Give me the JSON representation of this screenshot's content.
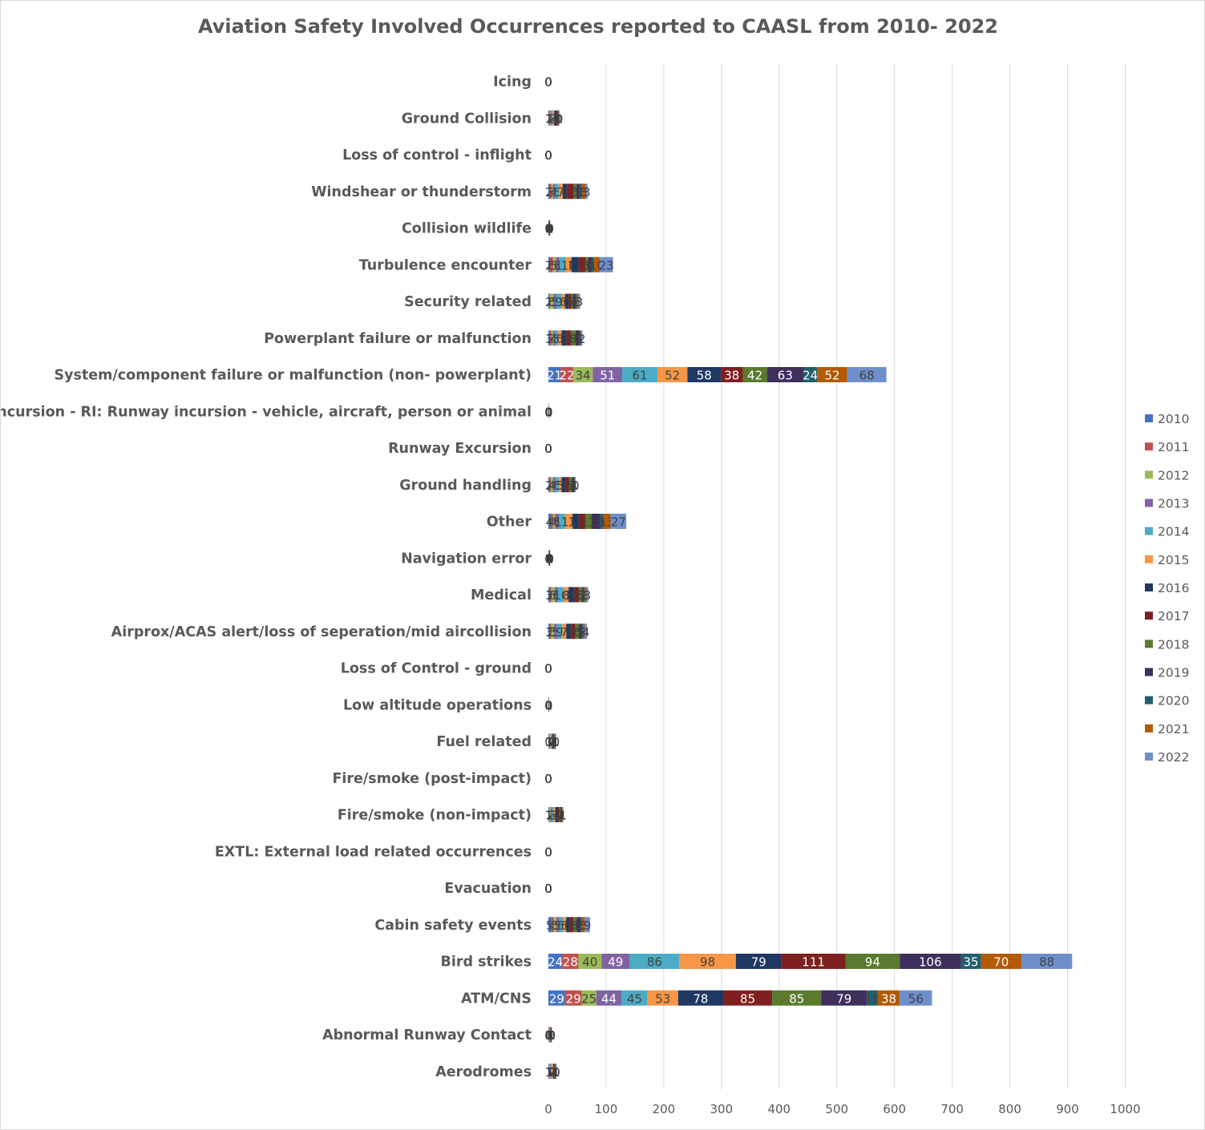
{
  "chart_data": {
    "type": "bar",
    "orientation": "horizontal",
    "stacked": true,
    "title": "Aviation Safety Involved Occurrences reported to CAASL from 2010- 2022",
    "xlim": [
      0,
      1000
    ],
    "x_ticks": [
      "0",
      "100",
      "200",
      "300",
      "400",
      "500",
      "600",
      "700",
      "800",
      "900",
      "1000"
    ],
    "grid": "vertical major gridlines",
    "legend": {
      "position": "right"
    },
    "categories": [
      "Icing",
      "Ground Collision",
      "Loss of control - inflight",
      "Windshear or thunderstorm",
      "Collision wildlife",
      "Turbulence encounter",
      "Security related",
      "Powerplant failure or malfunction",
      "System/component failure or malfunction (non- powerplant)",
      "Runway Incursion - RI: Runway incursion - vehicle, aircraft, person or animal",
      "Runway Excursion",
      "Ground handling",
      "Other",
      "Navigation error",
      "Medical",
      "Airprox/ACAS alert/loss of seperation/mid aircollision",
      "Loss of Control - ground",
      "Low altitude operations",
      "Fuel related",
      "Fire/smoke (post-impact)",
      "Fire/smoke (non-impact)",
      "EXTL: External load related occurrences",
      "Evacuation",
      "Cabin safety events",
      "Bird strikes",
      "ATM/CNS",
      "Abnormal Runway  Contact",
      "Aerodromes"
    ],
    "series": [
      {
        "name": "2010",
        "color": "#4472c4",
        "values": [
          0,
          1,
          0,
          2,
          0,
          2,
          2,
          3,
          21,
          0,
          0,
          2,
          4,
          0,
          3,
          3,
          0,
          0,
          0,
          0,
          1,
          0,
          0,
          5,
          24,
          29,
          0,
          1
        ]
      },
      {
        "name": "2011",
        "color": "#c0504d",
        "values": [
          0,
          2,
          0,
          3,
          1,
          6,
          1,
          2,
          22,
          0,
          0,
          2,
          4,
          1,
          2,
          2,
          0,
          0,
          1,
          0,
          1,
          0,
          0,
          4,
          28,
          29,
          1,
          1
        ]
      },
      {
        "name": "2012",
        "color": "#9bbb59",
        "values": [
          0,
          1,
          0,
          3,
          0,
          5,
          6,
          3,
          34,
          0,
          0,
          4,
          4,
          0,
          6,
          5,
          0,
          0,
          1,
          0,
          2,
          0,
          0,
          5,
          40,
          25,
          0,
          1
        ]
      },
      {
        "name": "2013",
        "color": "#8064a2",
        "values": [
          0,
          1,
          0,
          4,
          0,
          6,
          5,
          4,
          51,
          1,
          0,
          4,
          6,
          0,
          6,
          5,
          0,
          0,
          1,
          0,
          2,
          0,
          0,
          5,
          49,
          44,
          1,
          1
        ]
      },
      {
        "name": "2014",
        "color": "#4bacc6",
        "values": [
          0,
          2,
          0,
          6,
          0,
          11,
          9,
          5,
          61,
          0,
          0,
          6,
          11,
          0,
          10,
          9,
          0,
          0,
          1,
          0,
          3,
          0,
          0,
          6,
          86,
          45,
          0,
          2
        ]
      },
      {
        "name": "2015",
        "color": "#f79646",
        "values": [
          0,
          3,
          0,
          7,
          0,
          10,
          6,
          6,
          52,
          0,
          0,
          5,
          13,
          0,
          8,
          7,
          0,
          0,
          2,
          0,
          3,
          0,
          0,
          6,
          98,
          53,
          1,
          2
        ]
      },
      {
        "name": "2016",
        "color": "#1f3864",
        "values": [
          0,
          4,
          0,
          8,
          1,
          13,
          6,
          8,
          58,
          0,
          0,
          7,
          11,
          1,
          10,
          9,
          0,
          0,
          2,
          0,
          4,
          0,
          0,
          6,
          79,
          78,
          1,
          2
        ]
      },
      {
        "name": "2017",
        "color": "#7f2020",
        "values": [
          0,
          2,
          0,
          11,
          1,
          11,
          5,
          8,
          38,
          0,
          0,
          6,
          11,
          1,
          8,
          7,
          0,
          0,
          2,
          0,
          3,
          0,
          0,
          6,
          111,
          85,
          1,
          1
        ]
      },
      {
        "name": "2018",
        "color": "#5a7a2e",
        "values": [
          0,
          1,
          0,
          5,
          0,
          5,
          3,
          8,
          42,
          0,
          0,
          5,
          11,
          0,
          5,
          6,
          0,
          0,
          1,
          0,
          2,
          0,
          0,
          6,
          94,
          85,
          0,
          1
        ]
      },
      {
        "name": "2019",
        "color": "#3f2f5c",
        "values": [
          0,
          1,
          0,
          5,
          0,
          6,
          4,
          7,
          63,
          0,
          0,
          4,
          15,
          0,
          3,
          5,
          0,
          0,
          1,
          0,
          2,
          0,
          0,
          6,
          106,
          79,
          1,
          1
        ]
      },
      {
        "name": "2020",
        "color": "#215f6e",
        "values": [
          0,
          0,
          0,
          3,
          0,
          4,
          2,
          2,
          24,
          0,
          0,
          1,
          5,
          0,
          2,
          2,
          0,
          1,
          1,
          0,
          1,
          0,
          0,
          3,
          35,
          19,
          0,
          1
        ]
      },
      {
        "name": "2021",
        "color": "#b35a04",
        "values": [
          0,
          1,
          0,
          8,
          0,
          10,
          3,
          1,
          52,
          0,
          0,
          1,
          13,
          0,
          3,
          3,
          0,
          0,
          0,
          0,
          1,
          0,
          0,
          5,
          70,
          38,
          0,
          0
        ]
      },
      {
        "name": "2022",
        "color": "#6f8fcc",
        "values": [
          0,
          0,
          0,
          3,
          0,
          23,
          3,
          2,
          68,
          0,
          0,
          0,
          27,
          0,
          3,
          4,
          0,
          0,
          0,
          0,
          1,
          0,
          0,
          9,
          88,
          56,
          0,
          0
        ]
      }
    ]
  }
}
